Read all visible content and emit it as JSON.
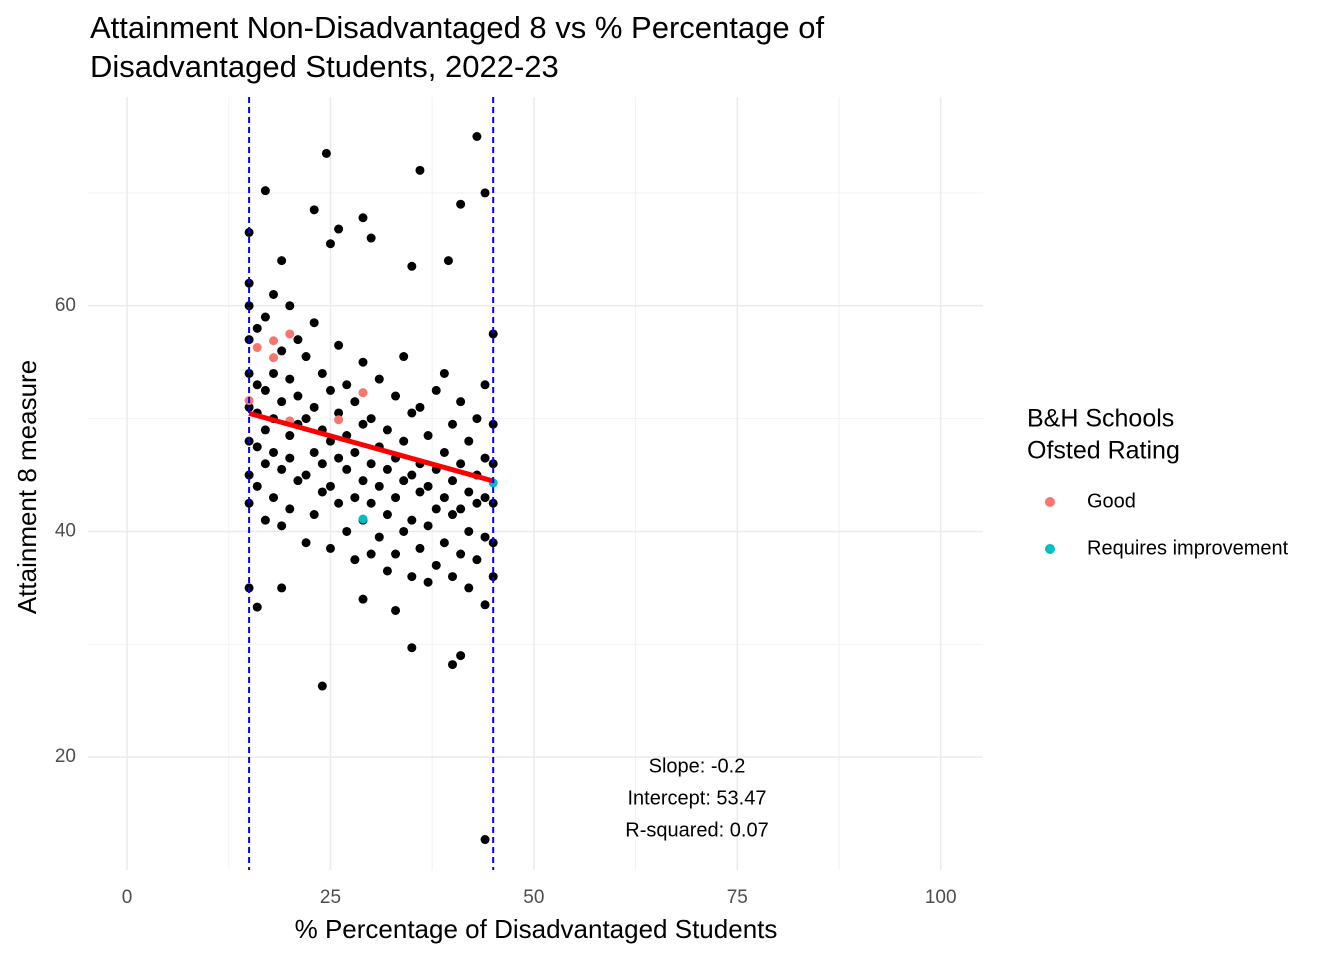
{
  "chart_data": {
    "type": "scatter",
    "title": [
      "Attainment Non-Disadvantaged 8 vs % Percentage of",
      "Disadvantaged Students, 2022-23"
    ],
    "x_label": "% Percentage of Disadvantaged Students",
    "y_label": "Attainment 8 measure",
    "xlim": [
      -4.8,
      105.2
    ],
    "ylim": [
      10,
      78.5
    ],
    "xticks": [
      0,
      25,
      50,
      75,
      100
    ],
    "yticks": [
      20,
      40,
      60
    ],
    "x_minor_ticks": [
      12.5,
      37.5,
      62.5,
      87.5
    ],
    "y_minor_ticks": [
      30,
      50,
      70
    ],
    "grid": true,
    "legend_title": [
      "B&H Schools",
      "Ofsted Rating"
    ],
    "legend_position": "right",
    "vlines": {
      "x": [
        15,
        45
      ],
      "color": "#0000ff"
    },
    "fit": {
      "x": [
        15,
        45
      ],
      "y": [
        50.47,
        44.47
      ],
      "color": "#ff0000"
    },
    "annotations": [
      "Slope: -0.2",
      "Intercept: 53.47",
      "R-squared: 0.07"
    ],
    "series": [
      {
        "color": "#000000",
        "x": [
          15,
          15,
          15,
          15,
          15,
          15,
          15,
          15,
          16,
          16,
          16,
          16,
          16,
          17,
          17,
          17,
          17,
          17,
          18,
          18,
          18,
          18,
          18,
          19,
          19,
          19,
          19,
          20,
          20,
          20,
          20,
          20,
          21,
          21,
          21,
          21,
          22,
          22,
          22,
          22,
          23,
          23,
          23,
          23,
          24,
          24,
          24,
          24,
          25,
          25,
          25,
          25,
          26,
          26,
          26,
          26,
          27,
          27,
          27,
          27,
          28,
          28,
          28,
          28,
          29,
          29,
          29,
          29,
          30,
          30,
          30,
          30,
          31,
          31,
          31,
          31,
          32,
          32,
          32,
          32,
          33,
          33,
          33,
          33,
          34,
          34,
          34,
          34,
          35,
          35,
          35,
          35,
          36,
          36,
          36,
          36,
          37,
          37,
          37,
          37,
          38,
          38,
          38,
          38,
          39,
          39,
          39,
          39,
          40,
          40,
          40,
          40,
          41,
          41,
          41,
          41,
          42,
          42,
          42,
          42,
          43,
          43,
          43,
          43,
          44,
          44,
          44,
          44,
          45,
          45,
          45,
          45,
          45,
          45,
          15,
          17,
          24.5,
          36,
          43,
          44,
          41,
          23,
          29,
          26,
          30,
          39.5,
          25,
          35,
          19,
          24,
          35,
          41,
          44,
          40,
          16,
          15,
          19,
          44,
          29,
          33
        ],
        "y": [
          42.5,
          45,
          48,
          51,
          54,
          57,
          60,
          62,
          44,
          47.5,
          50.5,
          53,
          58,
          41,
          46,
          49,
          52.5,
          59,
          43,
          47,
          50,
          54,
          61,
          40.5,
          45.5,
          51.5,
          56,
          42,
          46.5,
          48.5,
          53.5,
          60,
          44.5,
          49.5,
          52,
          57,
          39,
          45,
          50,
          55.5,
          41.5,
          47,
          51,
          58.5,
          43.5,
          46,
          49,
          54,
          38.5,
          44,
          48,
          52.5,
          42.5,
          46.5,
          50.5,
          56.5,
          40,
          45.5,
          48.5,
          53,
          37.5,
          43,
          47,
          51.5,
          41,
          44.5,
          49.5,
          55,
          38,
          42.5,
          46,
          50,
          39.5,
          44,
          47.5,
          53.5,
          36.5,
          41.5,
          45.5,
          49,
          38,
          43,
          46.5,
          52,
          40,
          44.5,
          48,
          55.5,
          36,
          41,
          45,
          50.5,
          38.5,
          43.5,
          46,
          51,
          35.5,
          40.5,
          44,
          48.5,
          37,
          42,
          45.5,
          52.5,
          39,
          43,
          47,
          54,
          36,
          41.5,
          44.5,
          49.5,
          38,
          42,
          46,
          51.5,
          35,
          40,
          43.5,
          48,
          37.5,
          42.5,
          45,
          50,
          39.5,
          43,
          46.5,
          53,
          36,
          39,
          42.5,
          46,
          49.5,
          57.5,
          66.5,
          70.2,
          73.5,
          72,
          75,
          70,
          69,
          68.5,
          67.8,
          66.8,
          66,
          64,
          65.5,
          63.5,
          64,
          26.3,
          29.7,
          29,
          12.7,
          28.2,
          33.3,
          35,
          35,
          33.5,
          34,
          33
        ]
      },
      {
        "name": "Good",
        "color": "#F8766D",
        "x": [
          15,
          16,
          18,
          18,
          20,
          20,
          26,
          29
        ],
        "y": [
          51.6,
          56.3,
          56.9,
          55.4,
          57.5,
          49.8,
          49.9,
          52.3
        ]
      },
      {
        "name": "Requires improvement",
        "color": "#00BFC4",
        "x": [
          29,
          45
        ],
        "y": [
          41.1,
          44.3
        ]
      }
    ]
  }
}
